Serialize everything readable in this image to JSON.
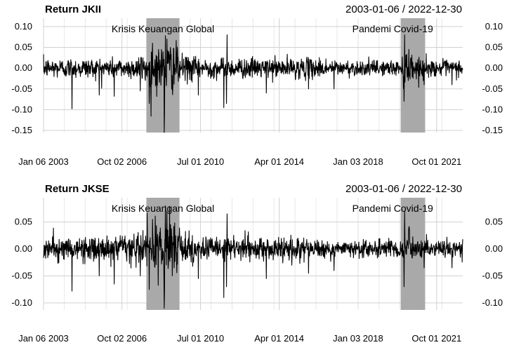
{
  "chart_data": [
    {
      "type": "line",
      "title": "Return JKII",
      "date_range": "2003-01-06 / 2022-12-30",
      "x_start": "2003-01-06",
      "x_end": "2022-12-30",
      "ylim": [
        -0.155,
        0.12
      ],
      "yticks": [
        0.1,
        0.05,
        0.0,
        -0.05,
        -0.1,
        -0.15
      ],
      "ytick_labels": [
        "0.10",
        "0.05",
        "0.00",
        "-0.05",
        "-0.10",
        "-0.15"
      ],
      "xtick_labels": [
        "Jan 06 2003",
        "Oct 02 2006",
        "Jul 01 2010",
        "Apr 01 2014",
        "Jan 03 2018",
        "Oct 01 2021"
      ],
      "xtick_dates": [
        "2003-01-06",
        "2006-10-02",
        "2010-07-01",
        "2014-04-01",
        "2018-01-03",
        "2021-10-01"
      ],
      "grid": true,
      "shaded_periods": [
        {
          "label": "Krisis Keuangan Global",
          "start": "2007-12-01",
          "end": "2009-06-30"
        },
        {
          "label": "Pandemi Covid-19",
          "start": "2020-01-15",
          "end": "2021-03-15"
        }
      ],
      "series": [
        {
          "typical_abs": 0.012,
          "spikes": [
            {
              "date": "2004-05-17",
              "value": -0.098
            },
            {
              "date": "2005-08-30",
              "value": -0.065
            },
            {
              "date": "2006-05-22",
              "value": -0.068
            },
            {
              "date": "2007-08-16",
              "value": -0.055
            },
            {
              "date": "2008-10-08",
              "value": -0.155
            },
            {
              "date": "2008-10-28",
              "value": 0.078
            },
            {
              "date": "2008-11-21",
              "value": 0.07
            },
            {
              "date": "2008-10-10",
              "value": -0.11
            },
            {
              "date": "2008-01-22",
              "value": -0.085
            },
            {
              "date": "2008-03-17",
              "value": 0.06
            },
            {
              "date": "2009-01-23",
              "value": 0.05
            },
            {
              "date": "2009-03-20",
              "value": 0.048
            },
            {
              "date": "2010-05-25",
              "value": -0.065
            },
            {
              "date": "2011-08-09",
              "value": -0.095
            },
            {
              "date": "2011-09-26",
              "value": -0.085
            },
            {
              "date": "2011-10-04",
              "value": 0.08
            },
            {
              "date": "2013-08-20",
              "value": -0.06
            },
            {
              "date": "2015-08-24",
              "value": -0.05
            },
            {
              "date": "2016-11-11",
              "value": -0.05
            },
            {
              "date": "2020-03-12",
              "value": -0.08
            },
            {
              "date": "2020-03-24",
              "value": 0.11
            },
            {
              "date": "2020-03-26",
              "value": 0.08
            },
            {
              "date": "2020-06-05",
              "value": 0.045
            },
            {
              "date": "2021-02-26",
              "value": -0.04
            },
            {
              "date": "2022-06-23",
              "value": -0.04
            }
          ]
        }
      ]
    },
    {
      "type": "line",
      "title": "Return JKSE",
      "date_range": "2003-01-06 / 2022-12-30",
      "x_start": "2003-01-06",
      "x_end": "2022-12-30",
      "ylim": [
        -0.113,
        0.095
      ],
      "yticks": [
        0.05,
        0.0,
        -0.05,
        -0.1
      ],
      "ytick_labels": [
        "0.05",
        "0.00",
        "-0.05",
        "-0.10"
      ],
      "xtick_labels": [
        "Jan 06 2003",
        "Oct 02 2006",
        "Jul 01 2010",
        "Apr 01 2014",
        "Jan 03 2018",
        "Oct 01 2021"
      ],
      "xtick_dates": [
        "2003-01-06",
        "2006-10-02",
        "2010-07-01",
        "2014-04-01",
        "2018-01-03",
        "2021-10-01"
      ],
      "grid": true,
      "shaded_periods": [
        {
          "label": "Krisis Keuangan Global",
          "start": "2007-12-01",
          "end": "2009-06-30"
        },
        {
          "label": "Pandemi Covid-19",
          "start": "2020-01-15",
          "end": "2021-03-15"
        }
      ],
      "series": [
        {
          "typical_abs": 0.011,
          "spikes": [
            {
              "date": "2004-05-17",
              "value": -0.078
            },
            {
              "date": "2005-08-30",
              "value": -0.05
            },
            {
              "date": "2006-05-22",
              "value": -0.065
            },
            {
              "date": "2007-08-16",
              "value": -0.05
            },
            {
              "date": "2008-10-08",
              "value": -0.11
            },
            {
              "date": "2008-10-28",
              "value": 0.08
            },
            {
              "date": "2008-11-21",
              "value": 0.07
            },
            {
              "date": "2008-10-10",
              "value": -0.08
            },
            {
              "date": "2008-01-22",
              "value": -0.075
            },
            {
              "date": "2008-03-17",
              "value": 0.055
            },
            {
              "date": "2009-01-23",
              "value": 0.045
            },
            {
              "date": "2009-03-20",
              "value": 0.042
            },
            {
              "date": "2010-05-25",
              "value": -0.055
            },
            {
              "date": "2011-08-09",
              "value": -0.09
            },
            {
              "date": "2011-09-26",
              "value": -0.07
            },
            {
              "date": "2011-10-04",
              "value": 0.065
            },
            {
              "date": "2013-08-20",
              "value": -0.055
            },
            {
              "date": "2015-08-24",
              "value": -0.045
            },
            {
              "date": "2016-11-11",
              "value": -0.04
            },
            {
              "date": "2020-03-12",
              "value": -0.07
            },
            {
              "date": "2020-03-24",
              "value": 0.095
            },
            {
              "date": "2020-03-26",
              "value": 0.07
            },
            {
              "date": "2020-06-05",
              "value": 0.04
            },
            {
              "date": "2021-02-26",
              "value": -0.035
            },
            {
              "date": "2022-06-23",
              "value": -0.035
            }
          ]
        }
      ]
    }
  ]
}
